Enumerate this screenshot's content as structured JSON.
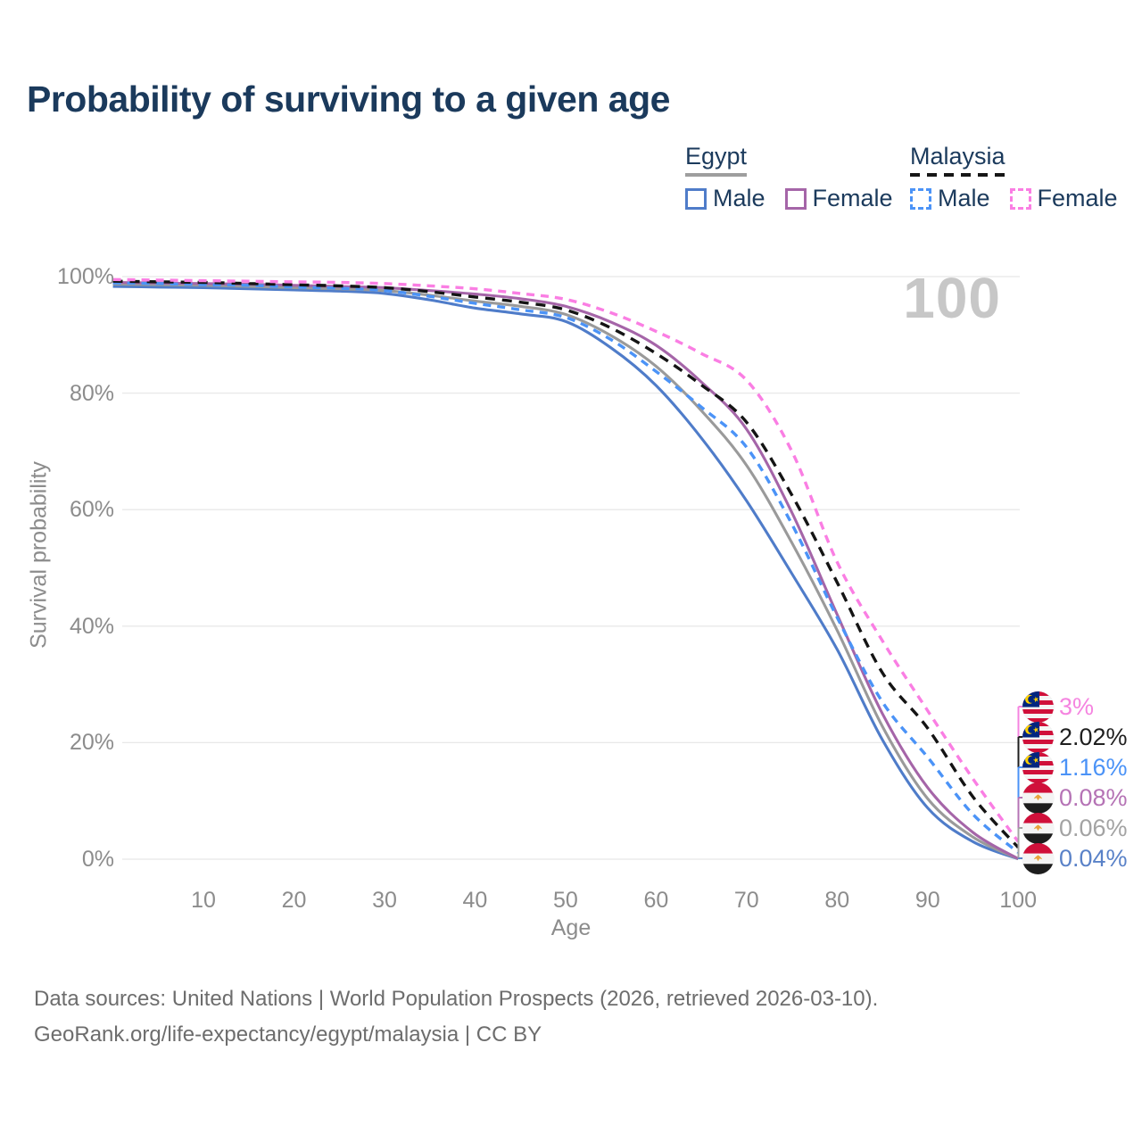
{
  "title": "Probability of surviving to a given age",
  "watermark": "100",
  "legend": {
    "egypt": {
      "title": "Egypt",
      "male": "Male",
      "female": "Female"
    },
    "malaysia": {
      "title": "Malaysia",
      "male": "Male",
      "female": "Female"
    }
  },
  "colors": {
    "egypt_male": "#4f7cc9",
    "egypt_female": "#a565a8",
    "egypt_both": "#9a9a9a",
    "malaysia_male": "#4b93f7",
    "malaysia_female": "#fa7ee3",
    "malaysia_both": "#141414",
    "egypt_header_underline": "#9e9e9e",
    "grid": "#e8e8e8",
    "axis_text": "#8c8c8c"
  },
  "chart_data": {
    "type": "line",
    "title": "Probability of surviving to a given age",
    "xlabel": "Age",
    "ylabel": "Survival probability",
    "x_range": [
      0,
      100
    ],
    "y_range": [
      0,
      100
    ],
    "grid": "horizontal",
    "x_ticks": [
      10,
      20,
      30,
      40,
      50,
      60,
      70,
      80,
      90,
      100
    ],
    "y_ticks": [
      {
        "v": 0,
        "label": "0%"
      },
      {
        "v": 20,
        "label": "20%"
      },
      {
        "v": 40,
        "label": "40%"
      },
      {
        "v": 60,
        "label": "60%"
      },
      {
        "v": 80,
        "label": "80%"
      },
      {
        "v": 100,
        "label": "100%"
      }
    ],
    "ages": [
      0,
      5,
      10,
      15,
      20,
      25,
      30,
      35,
      40,
      45,
      50,
      55,
      60,
      65,
      70,
      75,
      80,
      85,
      90,
      95,
      100
    ],
    "series": [
      {
        "name": "Egypt Male",
        "country": "Egypt",
        "sex": "Male",
        "color_key": "egypt_male",
        "color": "#4f7cc9",
        "dashed": false,
        "values": [
          98.3,
          98.2,
          98.1,
          97.9,
          97.7,
          97.5,
          97.1,
          96.0,
          94.6,
          93.6,
          92.3,
          87.8,
          81.3,
          72.3,
          61.5,
          49.0,
          36.0,
          20.5,
          8.8,
          3.0,
          0.04
        ]
      },
      {
        "name": "Egypt Both sexes",
        "country": "Egypt",
        "sex": "Both",
        "color_key": "egypt_both",
        "color": "#9a9a9a",
        "dashed": false,
        "values": [
          98.7,
          98.6,
          98.5,
          98.3,
          98.1,
          97.9,
          97.6,
          96.8,
          95.8,
          94.9,
          93.5,
          89.9,
          84.6,
          77.0,
          67.6,
          54.3,
          39.3,
          22.8,
          10.4,
          3.8,
          0.06
        ]
      },
      {
        "name": "Egypt Female",
        "country": "Egypt",
        "sex": "Female",
        "color_key": "egypt_female",
        "color": "#a565a8",
        "dashed": false,
        "values": [
          99.0,
          98.9,
          98.8,
          98.7,
          98.5,
          98.3,
          98.1,
          97.6,
          97.0,
          96.2,
          94.9,
          92.2,
          88.2,
          81.9,
          73.8,
          59.5,
          42.0,
          25.0,
          12.3,
          4.6,
          0.08
        ]
      },
      {
        "name": "Malaysia Male",
        "country": "Malaysia",
        "sex": "Male",
        "color_key": "malaysia_male",
        "color": "#4b93f7",
        "dashed": true,
        "values": [
          98.9,
          98.8,
          98.6,
          98.5,
          98.2,
          98.0,
          97.6,
          96.6,
          95.4,
          94.3,
          93.0,
          89.2,
          83.7,
          77.6,
          70.7,
          57.5,
          41.5,
          27.0,
          17.5,
          7.7,
          1.16
        ]
      },
      {
        "name": "Malaysia Both sexes",
        "country": "Malaysia",
        "sex": "Both",
        "color_key": "malaysia_both",
        "color": "#141414",
        "dashed": true,
        "values": [
          99.2,
          99.1,
          99.0,
          98.8,
          98.6,
          98.4,
          98.1,
          97.4,
          96.5,
          95.6,
          94.3,
          91.2,
          86.8,
          81.4,
          75.0,
          62.5,
          47.5,
          32.0,
          22.5,
          10.7,
          2.02
        ]
      },
      {
        "name": "Malaysia Female",
        "country": "Malaysia",
        "sex": "Female",
        "color_key": "malaysia_female",
        "color": "#fa7ee3",
        "dashed": true,
        "values": [
          99.5,
          99.4,
          99.3,
          99.2,
          99.1,
          99.0,
          98.8,
          98.4,
          97.9,
          97.1,
          96.1,
          93.8,
          90.6,
          86.8,
          82.2,
          70.0,
          51.0,
          37.5,
          25.5,
          13.8,
          3.0
        ]
      }
    ],
    "end_labels": [
      {
        "flag": "malaysia",
        "label": "3%",
        "color": "#f584e0",
        "value": 3.0
      },
      {
        "flag": "malaysia",
        "label": "2.02%",
        "color": "#1f1f1f",
        "value": 2.02
      },
      {
        "flag": "malaysia",
        "label": "1.16%",
        "color": "#4b93f7",
        "value": 1.16
      },
      {
        "flag": "egypt",
        "label": "0.08%",
        "color": "#b573b5",
        "value": 0.08
      },
      {
        "flag": "egypt",
        "label": "0.06%",
        "color": "#a3a3a3",
        "value": 0.06
      },
      {
        "flag": "egypt",
        "label": "0.04%",
        "color": "#5a82c8",
        "value": 0.04
      }
    ],
    "legend_position": "top-right"
  },
  "footer": {
    "line1": "Data sources: United Nations | World Population Prospects (2026, retrieved 2026-03-10).",
    "line2": "GeoRank.org/life-expectancy/egypt/malaysia | CC BY"
  }
}
